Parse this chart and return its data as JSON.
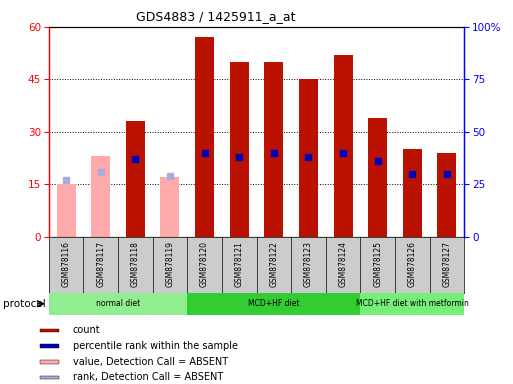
{
  "title": "GDS4883 / 1425911_a_at",
  "samples": [
    "GSM878116",
    "GSM878117",
    "GSM878118",
    "GSM878119",
    "GSM878120",
    "GSM878121",
    "GSM878122",
    "GSM878123",
    "GSM878124",
    "GSM878125",
    "GSM878126",
    "GSM878127"
  ],
  "count_values": [
    null,
    null,
    33,
    null,
    57,
    50,
    50,
    45,
    52,
    34,
    25,
    24
  ],
  "count_absent": [
    15,
    23,
    null,
    17,
    null,
    null,
    null,
    null,
    null,
    null,
    null,
    null
  ],
  "percentile_values": [
    null,
    null,
    37,
    null,
    40,
    38,
    40,
    38,
    40,
    36,
    30,
    30
  ],
  "percentile_absent": [
    27,
    31,
    null,
    29,
    null,
    null,
    null,
    null,
    null,
    null,
    null,
    null
  ],
  "ylim_left": [
    0,
    60
  ],
  "ylim_right": [
    0,
    100
  ],
  "yticks_left": [
    0,
    15,
    30,
    45,
    60
  ],
  "yticks_right": [
    0,
    25,
    50,
    75,
    100
  ],
  "ytick_labels_right": [
    "0",
    "25",
    "50",
    "75",
    "100%"
  ],
  "protocols": [
    {
      "label": "normal diet",
      "start": 0,
      "end": 4,
      "color": "#90EE90"
    },
    {
      "label": "MCD+HF diet",
      "start": 4,
      "end": 9,
      "color": "#33CC33"
    },
    {
      "label": "MCD+HF diet with metformin",
      "start": 9,
      "end": 12,
      "color": "#77EE77"
    }
  ],
  "bar_color_present": "#BB1100",
  "bar_color_absent": "#FFAAAA",
  "dot_color_present": "#0000BB",
  "dot_color_absent": "#AAAADD",
  "bar_width": 0.55,
  "xticklabel_bg": "#CCCCCC",
  "protocol_label": "protocol",
  "legend_items": [
    {
      "label": "count",
      "color": "#BB1100"
    },
    {
      "label": "percentile rank within the sample",
      "color": "#0000BB"
    },
    {
      "label": "value, Detection Call = ABSENT",
      "color": "#FFAAAA"
    },
    {
      "label": "rank, Detection Call = ABSENT",
      "color": "#AAAADD"
    }
  ]
}
